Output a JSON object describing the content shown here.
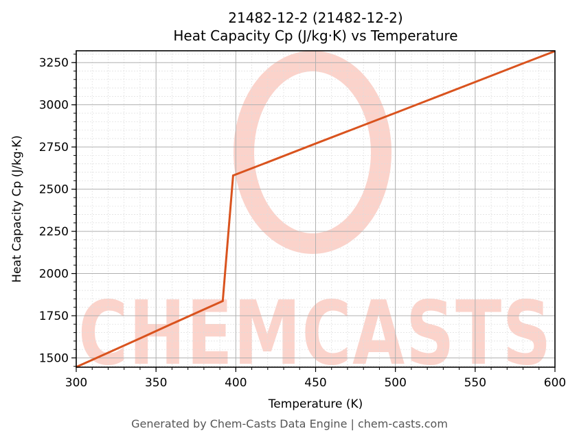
{
  "header": {
    "title_line1": "21482-12-2 (21482-12-2)",
    "title_line2": "Heat Capacity Cp (J/kg·K) vs Temperature"
  },
  "footer": {
    "text": "Generated by Chem-Casts Data Engine | chem-casts.com"
  },
  "watermark": {
    "text": "CHEMCASTS",
    "color": "#fbd3cb"
  },
  "colors": {
    "line": "#d9531e",
    "grid_major": "#b0b0b0",
    "grid_minor": "#dddddd",
    "axes": "#000000"
  },
  "chart_data": {
    "type": "line",
    "title": "21482-12-2 (21482-12-2)\nHeat Capacity Cp (J/kg·K) vs Temperature",
    "xlabel": "Temperature (K)",
    "ylabel": "Heat Capacity Cp (J/kg·K)",
    "xlim": [
      300,
      600
    ],
    "ylim": [
      1445,
      3320
    ],
    "xticks": [
      300,
      350,
      400,
      450,
      500,
      550,
      600
    ],
    "yticks": [
      1500,
      1750,
      2000,
      2250,
      2500,
      2750,
      3000,
      3250
    ],
    "x_minor_step": 10,
    "y_minor_step": 50,
    "grid": true,
    "legend": null,
    "series": [
      {
        "name": "Cp",
        "color": "#d9531e",
        "x": [
          300,
          320,
          340,
          360,
          380,
          391.8,
          398.3,
          420,
          450,
          480,
          500,
          520,
          550,
          580,
          600
        ],
        "y": [
          1446,
          1531,
          1616,
          1702,
          1787,
          1837,
          2581,
          2660,
          2770,
          2879,
          2952,
          3025,
          3135,
          3245,
          3318
        ]
      }
    ]
  }
}
